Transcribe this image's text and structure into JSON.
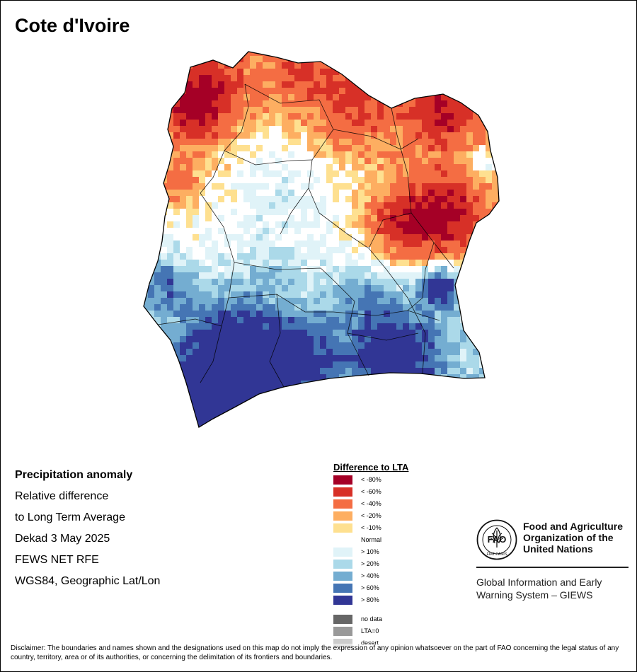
{
  "title": "Cote d'Ivoire",
  "info": {
    "heading": "Precipitation anomaly",
    "lines": [
      "Relative difference",
      "to Long Term Average",
      "Dekad 3 May 2025",
      "FEWS NET RFE",
      "WGS84, Geographic Lat/Lon"
    ]
  },
  "legend": {
    "title": "Difference to LTA",
    "classes": [
      {
        "label": "< -80%",
        "color": "#a50026"
      },
      {
        "label": "< -60%",
        "color": "#d73027"
      },
      {
        "label": "< -40%",
        "color": "#f46d43"
      },
      {
        "label": "< -20%",
        "color": "#fdae61"
      },
      {
        "label": "< -10%",
        "color": "#fee090"
      },
      {
        "label": "Normal",
        "color": "#ffffff"
      },
      {
        "label": "> 10%",
        "color": "#e0f3f8"
      },
      {
        "label": "> 20%",
        "color": "#abd9e9"
      },
      {
        "label": "> 40%",
        "color": "#74add1"
      },
      {
        "label": "> 60%",
        "color": "#4575b4"
      },
      {
        "label": "> 80%",
        "color": "#313695"
      }
    ],
    "extras": [
      {
        "label": "no data",
        "color": "#666666"
      },
      {
        "label": "LTA=0",
        "color": "#999999"
      },
      {
        "label": "desert",
        "color": "#cccccc"
      }
    ]
  },
  "fao": {
    "name_lines": [
      "Food and Agriculture",
      "Organization of the",
      "United Nations"
    ],
    "logo_letters": "FAO",
    "motto": "FIAT PANIS",
    "giews_lines": [
      "Global Information and Early",
      "Warning System – GIEWS"
    ]
  },
  "disclaimer": "Disclaimer: The boundaries and names shown and the designations used on this map do not imply the expression of any opinion whatsoever on the part of FAO concerning the legal status of any country, territory, area or of its authorities, or concerning the delimitation of its frontiers and boundaries."
}
